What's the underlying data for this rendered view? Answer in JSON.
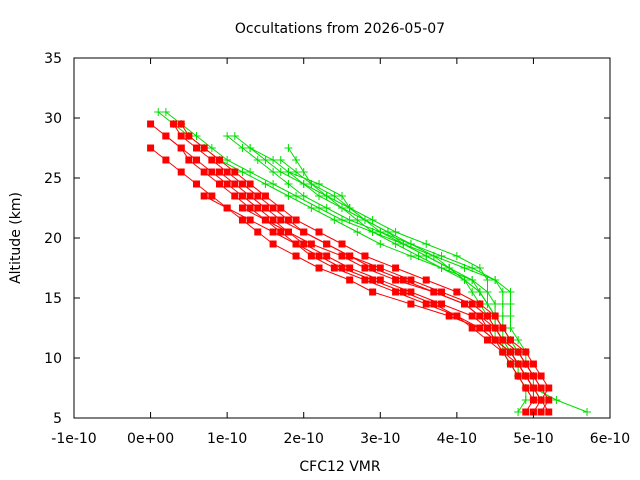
{
  "chart_data": {
    "type": "line",
    "title": "Occultations from 2026-05-07",
    "xlabel": "CFC12 VMR",
    "ylabel": "Altitude (km)",
    "xlim": [
      -1e-10,
      6e-10
    ],
    "ylim": [
      5,
      35
    ],
    "xticks": [
      "-1e-10",
      "0e+00",
      "1e-10",
      "2e-10",
      "3e-10",
      "4e-10",
      "5e-10",
      "6e-10"
    ],
    "xtick_values": [
      -1e-10,
      0,
      1e-10,
      2e-10,
      3e-10,
      4e-10,
      5e-10,
      6e-10
    ],
    "yticks": [
      "5",
      "10",
      "15",
      "20",
      "25",
      "30",
      "35"
    ],
    "ytick_values": [
      5,
      10,
      15,
      20,
      25,
      30,
      35
    ],
    "grid": false,
    "legend": "none",
    "colors": {
      "red": "#ff0000",
      "green": "#00dd00"
    },
    "series": [
      {
        "color": "red",
        "marker": "square",
        "altitude": [
          29.5,
          28.5,
          27.5,
          26.5,
          25.5,
          24.5,
          23.5,
          22.5,
          21.5,
          20.5,
          19.5,
          18.5,
          17.5,
          16.5,
          15.5,
          14.5,
          13.5,
          12.5,
          11.5,
          10.5,
          9.5,
          8.5,
          7.5,
          6.5,
          5.5
        ],
        "values": [
          0.0,
          2e-11,
          4e-11,
          6e-11,
          8e-11,
          1e-10,
          1.2e-10,
          1.4e-10,
          1.6e-10,
          1.8e-10,
          2e-10,
          2.3e-10,
          2.6e-10,
          3e-10,
          3.4e-10,
          3.8e-10,
          4.2e-10,
          4.4e-10,
          4.5e-10,
          4.7e-10,
          4.8e-10,
          4.9e-10,
          5e-10,
          5e-10,
          4.9e-10
        ]
      },
      {
        "color": "red",
        "marker": "square",
        "altitude": [
          29.5,
          28.5,
          27.5,
          26.5,
          25.5,
          24.5,
          23.5,
          22.5,
          21.5,
          20.5,
          19.5,
          18.5,
          17.5,
          16.5,
          15.5,
          14.5,
          13.5,
          12.5,
          11.5,
          10.5,
          9.5,
          8.5,
          7.5,
          6.5,
          5.5
        ],
        "values": [
          3e-11,
          4e-11,
          6e-11,
          8e-11,
          1e-10,
          1.2e-10,
          1.4e-10,
          1.6e-10,
          1.8e-10,
          2e-10,
          2.3e-10,
          2.6e-10,
          2.9e-10,
          3.3e-10,
          3.7e-10,
          4.1e-10,
          4.3e-10,
          4.5e-10,
          4.6e-10,
          4.8e-10,
          4.9e-10,
          5e-10,
          5.1e-10,
          5.2e-10,
          5.1e-10
        ]
      },
      {
        "color": "red",
        "marker": "square",
        "altitude": [
          28.5,
          27.5,
          26.5,
          25.5,
          24.5,
          23.5,
          22.5,
          21.5,
          20.5,
          19.5,
          18.5,
          17.5,
          16.5,
          15.5,
          14.5,
          13.5,
          12.5,
          11.5,
          10.5,
          9.5,
          8.5,
          7.5,
          6.5
        ],
        "values": [
          2e-11,
          4e-11,
          5e-11,
          7e-11,
          9e-11,
          1.1e-10,
          1.3e-10,
          1.5e-10,
          1.7e-10,
          1.9e-10,
          2.1e-10,
          2.4e-10,
          2.8e-10,
          3.2e-10,
          3.6e-10,
          4e-10,
          4.3e-10,
          4.5e-10,
          4.6e-10,
          4.7e-10,
          4.8e-10,
          4.9e-10,
          5e-10
        ]
      },
      {
        "color": "red",
        "marker": "square",
        "altitude": [
          27.5,
          26.5,
          25.5,
          24.5,
          23.5,
          22.5,
          21.5,
          20.5,
          19.5,
          18.5,
          17.5,
          16.5,
          15.5,
          14.5,
          13.5,
          12.5,
          11.5,
          10.5,
          9.5,
          8.5,
          7.5
        ],
        "values": [
          0.0,
          2e-11,
          4e-11,
          6e-11,
          8e-11,
          1e-10,
          1.3e-10,
          1.6e-10,
          1.9e-10,
          2.2e-10,
          2.5e-10,
          2.9e-10,
          3.3e-10,
          3.7e-10,
          4e-10,
          4.2e-10,
          4.4e-10,
          4.6e-10,
          4.8e-10,
          4.9e-10,
          5e-10
        ]
      },
      {
        "color": "red",
        "marker": "square",
        "altitude": [
          29.5,
          28.5,
          27.5,
          26.5,
          25.5,
          24.5,
          23.5,
          22.5,
          21.5,
          20.5,
          19.5,
          18.5,
          17.5,
          16.5,
          15.5,
          14.5,
          13.5,
          12.5,
          11.5,
          10.5,
          9.5,
          8.5,
          7.5,
          6.5,
          5.5
        ],
        "values": [
          4e-11,
          5e-11,
          7e-11,
          9e-11,
          1.1e-10,
          1.3e-10,
          1.5e-10,
          1.7e-10,
          1.9e-10,
          2.2e-10,
          2.5e-10,
          2.8e-10,
          3.2e-10,
          3.6e-10,
          4e-10,
          4.3e-10,
          4.5e-10,
          4.6e-10,
          4.7e-10,
          4.9e-10,
          5e-10,
          5.1e-10,
          5.2e-10,
          5.1e-10,
          5e-10
        ]
      },
      {
        "color": "red",
        "marker": "square",
        "altitude": [
          25.5,
          24.5,
          23.5,
          22.5,
          21.5,
          20.5,
          19.5,
          18.5,
          17.5,
          16.5,
          15.5,
          14.5,
          13.5,
          12.5,
          11.5,
          10.5,
          9.5,
          8.5,
          7.5
        ],
        "values": [
          9e-11,
          1.1e-10,
          1.3e-10,
          1.5e-10,
          1.7e-10,
          2e-10,
          2.3e-10,
          2.6e-10,
          3e-10,
          3.4e-10,
          3.8e-10,
          4.2e-10,
          4.4e-10,
          4.5e-10,
          4.6e-10,
          4.8e-10,
          4.9e-10,
          5e-10,
          5.1e-10
        ]
      },
      {
        "color": "red",
        "marker": "square",
        "altitude": [
          23.5,
          22.5,
          21.5,
          20.5,
          19.5,
          18.5,
          17.5,
          16.5,
          15.5,
          14.5,
          13.5,
          12.5,
          11.5,
          10.5,
          9.5,
          8.5,
          7.5,
          6.5,
          5.5
        ],
        "values": [
          7e-11,
          1e-10,
          1.2e-10,
          1.4e-10,
          1.6e-10,
          1.9e-10,
          2.2e-10,
          2.6e-10,
          2.9e-10,
          3.4e-10,
          3.9e-10,
          4.3e-10,
          4.5e-10,
          4.7e-10,
          4.8e-10,
          4.9e-10,
          5e-10,
          5.1e-10,
          5.2e-10
        ]
      },
      {
        "color": "red",
        "marker": "square",
        "altitude": [
          22.5,
          21.5,
          20.5,
          19.5,
          18.5,
          17.5,
          16.5,
          15.5,
          14.5,
          13.5,
          12.5,
          11.5,
          10.5,
          9.5,
          8.5
        ],
        "values": [
          1.2e-10,
          1.5e-10,
          1.8e-10,
          2.1e-10,
          2.5e-10,
          2.8e-10,
          3.2e-10,
          3.7e-10,
          4.1e-10,
          4.3e-10,
          4.4e-10,
          4.5e-10,
          4.7e-10,
          4.8e-10,
          4.9e-10
        ]
      },
      {
        "color": "green",
        "marker": "plus",
        "altitude": [
          30.5,
          29.5,
          28.5,
          27.5,
          26.5,
          25.5,
          24.5,
          23.5,
          22.5,
          21.5,
          20.5,
          19.5,
          18.5,
          17.5,
          16.5,
          15.5,
          14.5,
          13.5,
          12.5,
          11.5,
          10.5,
          9.5,
          8.5,
          7.5,
          6.5,
          5.5
        ],
        "values": [
          1e-11,
          3e-11,
          5e-11,
          7e-11,
          9e-11,
          1.2e-10,
          1.5e-10,
          1.8e-10,
          2.1e-10,
          2.4e-10,
          2.7e-10,
          3e-10,
          3.4e-10,
          3.8e-10,
          4.2e-10,
          4.4e-10,
          4.5e-10,
          4.5e-10,
          4.6e-10,
          4.6e-10,
          4.7e-10,
          4.8e-10,
          4.8e-10,
          4.9e-10,
          4.9e-10,
          4.8e-10
        ]
      },
      {
        "color": "green",
        "marker": "plus",
        "altitude": [
          30.5,
          29.5,
          28.5,
          27.5,
          26.5,
          25.5,
          24.5,
          23.5,
          22.5,
          21.5,
          20.5,
          19.5,
          18.5,
          17.5,
          16.5,
          15.5,
          14.5,
          13.5,
          12.5,
          11.5,
          10.5,
          9.5,
          8.5,
          7.5,
          6.5,
          5.5
        ],
        "values": [
          2e-11,
          4e-11,
          6e-11,
          8e-11,
          1e-10,
          1.3e-10,
          1.6e-10,
          1.9e-10,
          2.2e-10,
          2.5e-10,
          2.9e-10,
          3.3e-10,
          3.7e-10,
          4.1e-10,
          4.5e-10,
          4.7e-10,
          4.7e-10,
          4.7e-10,
          4.7e-10,
          4.8e-10,
          4.9e-10,
          4.9e-10,
          5e-10,
          5e-10,
          5.3e-10,
          5.7e-10
        ]
      },
      {
        "color": "green",
        "marker": "plus",
        "altitude": [
          28.5,
          27.5,
          26.5,
          25.5,
          24.5,
          23.5,
          22.5,
          21.5,
          20.5,
          19.5,
          18.5,
          17.5,
          16.5,
          15.5,
          14.5,
          13.5,
          12.5,
          11.5,
          10.5,
          9.5,
          8.5,
          7.5,
          6.5
        ],
        "values": [
          1e-10,
          1.2e-10,
          1.4e-10,
          1.6e-10,
          1.8e-10,
          2e-10,
          2.3e-10,
          2.6e-10,
          3e-10,
          3.4e-10,
          3.8e-10,
          4.2e-10,
          4.5e-10,
          4.6e-10,
          4.6e-10,
          4.6e-10,
          4.6e-10,
          4.7e-10,
          4.8e-10,
          4.9e-10,
          5e-10,
          5e-10,
          5.1e-10
        ]
      },
      {
        "color": "green",
        "marker": "plus",
        "altitude": [
          28.5,
          27.5,
          26.5,
          25.5,
          24.5,
          23.5,
          22.5,
          21.5,
          20.5,
          19.5,
          18.5,
          17.5,
          16.5,
          15.5,
          14.5,
          13.5,
          12.5,
          11.5,
          10.5,
          9.5,
          8.5,
          7.5
        ],
        "values": [
          1.1e-10,
          1.3e-10,
          1.5e-10,
          1.7e-10,
          2e-10,
          2.3e-10,
          2.6e-10,
          2.9e-10,
          3.2e-10,
          3.6e-10,
          4e-10,
          4.3e-10,
          4.4e-10,
          4.4e-10,
          4.4e-10,
          4.5e-10,
          4.5e-10,
          4.6e-10,
          4.7e-10,
          4.8e-10,
          4.9e-10,
          5e-10
        ]
      },
      {
        "color": "green",
        "marker": "plus",
        "altitude": [
          27.5,
          26.5,
          25.5,
          24.5,
          23.5,
          22.5,
          21.5,
          20.5,
          19.5,
          18.5,
          17.5,
          16.5,
          15.5,
          14.5,
          13.5,
          12.5,
          11.5,
          10.5,
          9.5,
          8.5,
          7.5,
          6.5
        ],
        "values": [
          1.3e-10,
          1.6e-10,
          1.8e-10,
          2e-10,
          2.2e-10,
          2.5e-10,
          2.8e-10,
          3.1e-10,
          3.4e-10,
          3.7e-10,
          3.9e-10,
          4.1e-10,
          4.2e-10,
          4.3e-10,
          4.4e-10,
          4.5e-10,
          4.6e-10,
          4.7e-10,
          4.8e-10,
          4.9e-10,
          5e-10,
          5.1e-10
        ]
      },
      {
        "color": "green",
        "marker": "plus",
        "altitude": [
          27.5,
          26.5,
          25.5,
          24.5,
          23.5,
          22.5,
          21.5,
          20.5,
          19.5,
          18.5,
          17.5,
          16.5,
          15.5,
          14.5,
          13.5,
          12.5,
          11.5,
          10.5,
          9.5,
          8.5,
          7.5,
          6.5
        ],
        "values": [
          1.8e-10,
          1.9e-10,
          2e-10,
          2.1e-10,
          2.3e-10,
          2.5e-10,
          2.7e-10,
          2.9e-10,
          3.2e-10,
          3.5e-10,
          3.8e-10,
          4.1e-10,
          4.3e-10,
          4.4e-10,
          4.5e-10,
          4.5e-10,
          4.6e-10,
          4.6e-10,
          4.7e-10,
          4.8e-10,
          4.9e-10,
          5e-10
        ]
      },
      {
        "color": "green",
        "marker": "plus",
        "altitude": [
          26.5,
          25.5,
          24.5,
          23.5,
          22.5,
          21.5,
          20.5,
          19.5,
          18.5,
          17.5,
          16.5,
          15.5,
          14.5,
          13.5,
          12.5,
          11.5,
          10.5,
          9.5,
          8.5,
          7.5
        ],
        "values": [
          1.7e-10,
          1.9e-10,
          2.1e-10,
          2.4e-10,
          2.6e-10,
          2.8e-10,
          3.1e-10,
          3.3e-10,
          3.6e-10,
          3.9e-10,
          4.2e-10,
          4.3e-10,
          4.4e-10,
          4.5e-10,
          4.5e-10,
          4.5e-10,
          4.6e-10,
          4.7e-10,
          4.8e-10,
          4.9e-10
        ]
      },
      {
        "color": "green",
        "marker": "plus",
        "altitude": [
          25.5,
          24.5,
          23.5,
          22.5,
          21.5,
          20.5,
          19.5,
          18.5,
          17.5,
          16.5,
          15.5,
          14.5,
          13.5,
          12.5,
          11.5,
          10.5,
          9.5,
          8.5
        ],
        "values": [
          1.8e-10,
          2.2e-10,
          2.5e-10,
          2.6e-10,
          2.8e-10,
          3e-10,
          3.3e-10,
          3.6e-10,
          3.9e-10,
          4.1e-10,
          4.3e-10,
          4.4e-10,
          4.5e-10,
          4.6e-10,
          4.7e-10,
          4.8e-10,
          4.9e-10,
          5e-10
        ]
      }
    ]
  }
}
